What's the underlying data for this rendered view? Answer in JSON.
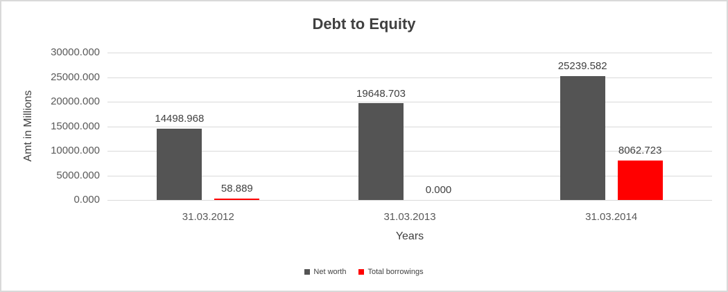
{
  "chart_data": {
    "type": "bar",
    "title": "Debt to Equity",
    "xlabel": "Years",
    "ylabel": "Amt in Millions",
    "categories": [
      "31.03.2012",
      "31.03.2013",
      "31.03.2014"
    ],
    "series": [
      {
        "name": "Net worth",
        "color": "#545454",
        "values": [
          14498.968,
          19648.703,
          25239.582
        ]
      },
      {
        "name": "Total borrowings",
        "color": "#ff0000",
        "values": [
          58.889,
          0.0,
          8062.723
        ]
      }
    ],
    "data_labels": [
      [
        "14498.968",
        "19648.703",
        "25239.582"
      ],
      [
        "58.889",
        "0.000",
        "8062.723"
      ]
    ],
    "y_ticks": [
      "30000.000",
      "25000.000",
      "20000.000",
      "15000.000",
      "10000.000",
      "5000.000",
      "0.000"
    ],
    "ylim": [
      0,
      30000
    ],
    "y_tick_step": 5000,
    "grid": true,
    "legend_position": "bottom",
    "legend": [
      "Net worth",
      "Total borrowings"
    ]
  },
  "colors": {
    "gridline": "#d9d9d9",
    "border": "#d9d9d9",
    "title_text": "#404040",
    "axis_text": "#595959",
    "net_worth": "#545454",
    "total_borrowings": "#ff0000",
    "background": "#ffffff"
  }
}
